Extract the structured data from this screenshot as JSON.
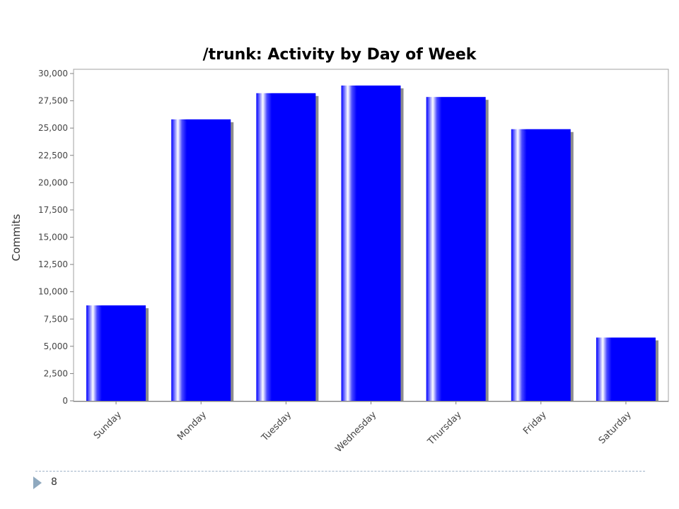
{
  "chart_data": {
    "type": "bar",
    "title": "/trunk: Activity by Day of Week",
    "xlabel": "",
    "ylabel": "Commits",
    "categories": [
      "Sunday",
      "Monday",
      "Tuesday",
      "Wednesday",
      "Thursday",
      "Friday",
      "Saturday"
    ],
    "values": [
      8750,
      25800,
      28200,
      28900,
      27850,
      24900,
      5800
    ],
    "ylim": [
      0,
      30000
    ],
    "yticks": [
      0,
      2500,
      5000,
      7500,
      10000,
      12500,
      15000,
      17500,
      20000,
      22500,
      25000,
      27500,
      30000
    ],
    "grid": false,
    "legend": "none",
    "bar_color": "#0000ff"
  },
  "footer": {
    "page_number": "8"
  }
}
